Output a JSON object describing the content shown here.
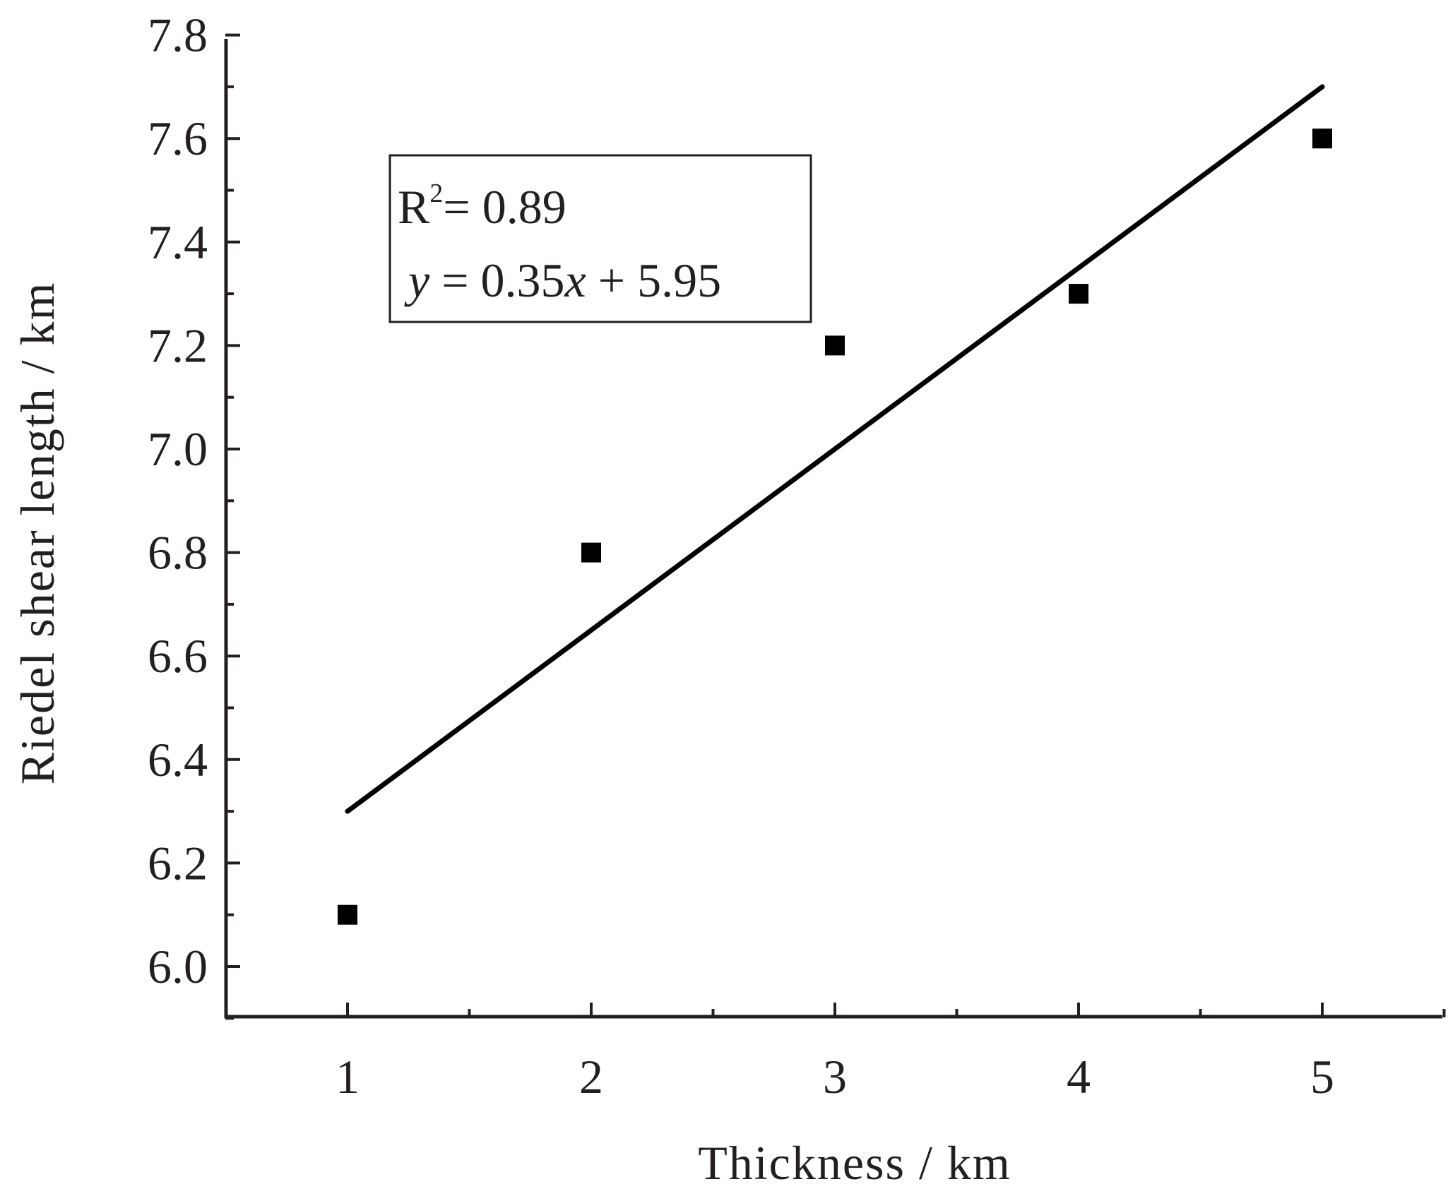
{
  "chart_data": {
    "type": "scatter",
    "xlabel": "Thickness / km",
    "ylabel": "Riedel shear length / km",
    "xlim": [
      0.5,
      5.5
    ],
    "ylim": [
      5.9,
      7.8
    ],
    "x_ticks": [
      1,
      2,
      3,
      4,
      5
    ],
    "x_tick_labels": [
      "1",
      "2",
      "3",
      "4",
      "5"
    ],
    "y_ticks": [
      6.0,
      6.2,
      6.4,
      6.6,
      6.8,
      7.0,
      7.2,
      7.4,
      7.6,
      7.8
    ],
    "y_tick_labels": [
      "6.0",
      "6.2",
      "6.4",
      "6.6",
      "6.8",
      "7.0",
      "7.2",
      "7.4",
      "7.6",
      "7.8"
    ],
    "points": [
      {
        "x": 1,
        "y": 6.1
      },
      {
        "x": 2,
        "y": 6.8
      },
      {
        "x": 3,
        "y": 7.2
      },
      {
        "x": 4,
        "y": 7.3
      },
      {
        "x": 5,
        "y": 7.6
      }
    ],
    "fit_line": {
      "slope": 0.35,
      "intercept": 5.95,
      "x_range": [
        1,
        5
      ]
    },
    "annotation": {
      "r2_label": "R",
      "r2_sup": "2",
      "r2_rest": "= 0.89",
      "eq_y": "y",
      "eq_mid": " = 0.35",
      "eq_x": "x",
      "eq_end": " + 5.95"
    },
    "grid": false,
    "marker": "square",
    "color": "#000000"
  }
}
